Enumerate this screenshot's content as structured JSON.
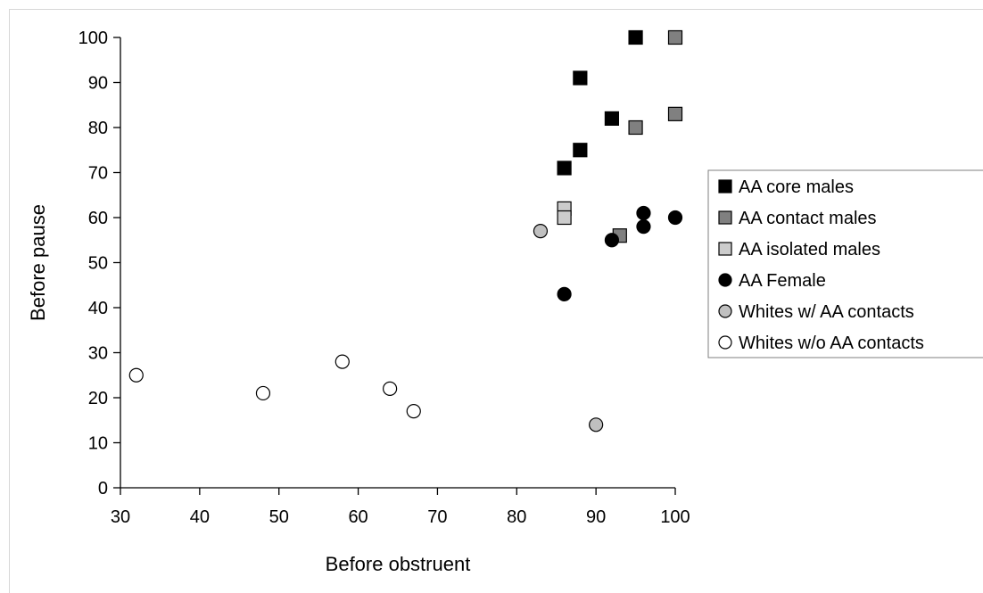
{
  "chart_data": {
    "type": "scatter",
    "title": "",
    "xlabel": "Before obstruent",
    "ylabel": "Before pause",
    "xlim": [
      30,
      100
    ],
    "ylim": [
      0,
      100
    ],
    "xticks": [
      30,
      40,
      50,
      60,
      70,
      80,
      90,
      100
    ],
    "yticks": [
      0,
      10,
      20,
      30,
      40,
      50,
      60,
      70,
      80,
      90,
      100
    ],
    "grid": false,
    "legend_position": "right",
    "series": [
      {
        "name": "AA core males",
        "marker": "square",
        "color": "#000000",
        "points": [
          {
            "x": 95,
            "y": 100
          },
          {
            "x": 88,
            "y": 91
          },
          {
            "x": 92,
            "y": 82
          },
          {
            "x": 88,
            "y": 75
          },
          {
            "x": 86,
            "y": 71
          }
        ]
      },
      {
        "name": "AA contact males",
        "marker": "square",
        "color": "#808080",
        "points": [
          {
            "x": 100,
            "y": 100
          },
          {
            "x": 100,
            "y": 83
          },
          {
            "x": 95,
            "y": 80
          },
          {
            "x": 93,
            "y": 56
          }
        ]
      },
      {
        "name": "AA isolated males",
        "marker": "square",
        "color": "#cccccc",
        "points": [
          {
            "x": 86,
            "y": 62
          },
          {
            "x": 86,
            "y": 60
          }
        ]
      },
      {
        "name": "AA Female",
        "marker": "circle",
        "color": "#000000",
        "points": [
          {
            "x": 96,
            "y": 61
          },
          {
            "x": 100,
            "y": 60
          },
          {
            "x": 96,
            "y": 58
          },
          {
            "x": 92,
            "y": 55
          },
          {
            "x": 86,
            "y": 43
          }
        ]
      },
      {
        "name": "Whites w/ AA contacts",
        "marker": "circle",
        "color": "#c0c0c0",
        "points": [
          {
            "x": 83,
            "y": 57
          },
          {
            "x": 90,
            "y": 14
          }
        ]
      },
      {
        "name": "Whites w/o AA contacts",
        "marker": "circle",
        "color": "#ffffff",
        "points": [
          {
            "x": 32,
            "y": 25
          },
          {
            "x": 48,
            "y": 21
          },
          {
            "x": 58,
            "y": 28
          },
          {
            "x": 64,
            "y": 22
          },
          {
            "x": 67,
            "y": 17
          }
        ]
      }
    ]
  }
}
